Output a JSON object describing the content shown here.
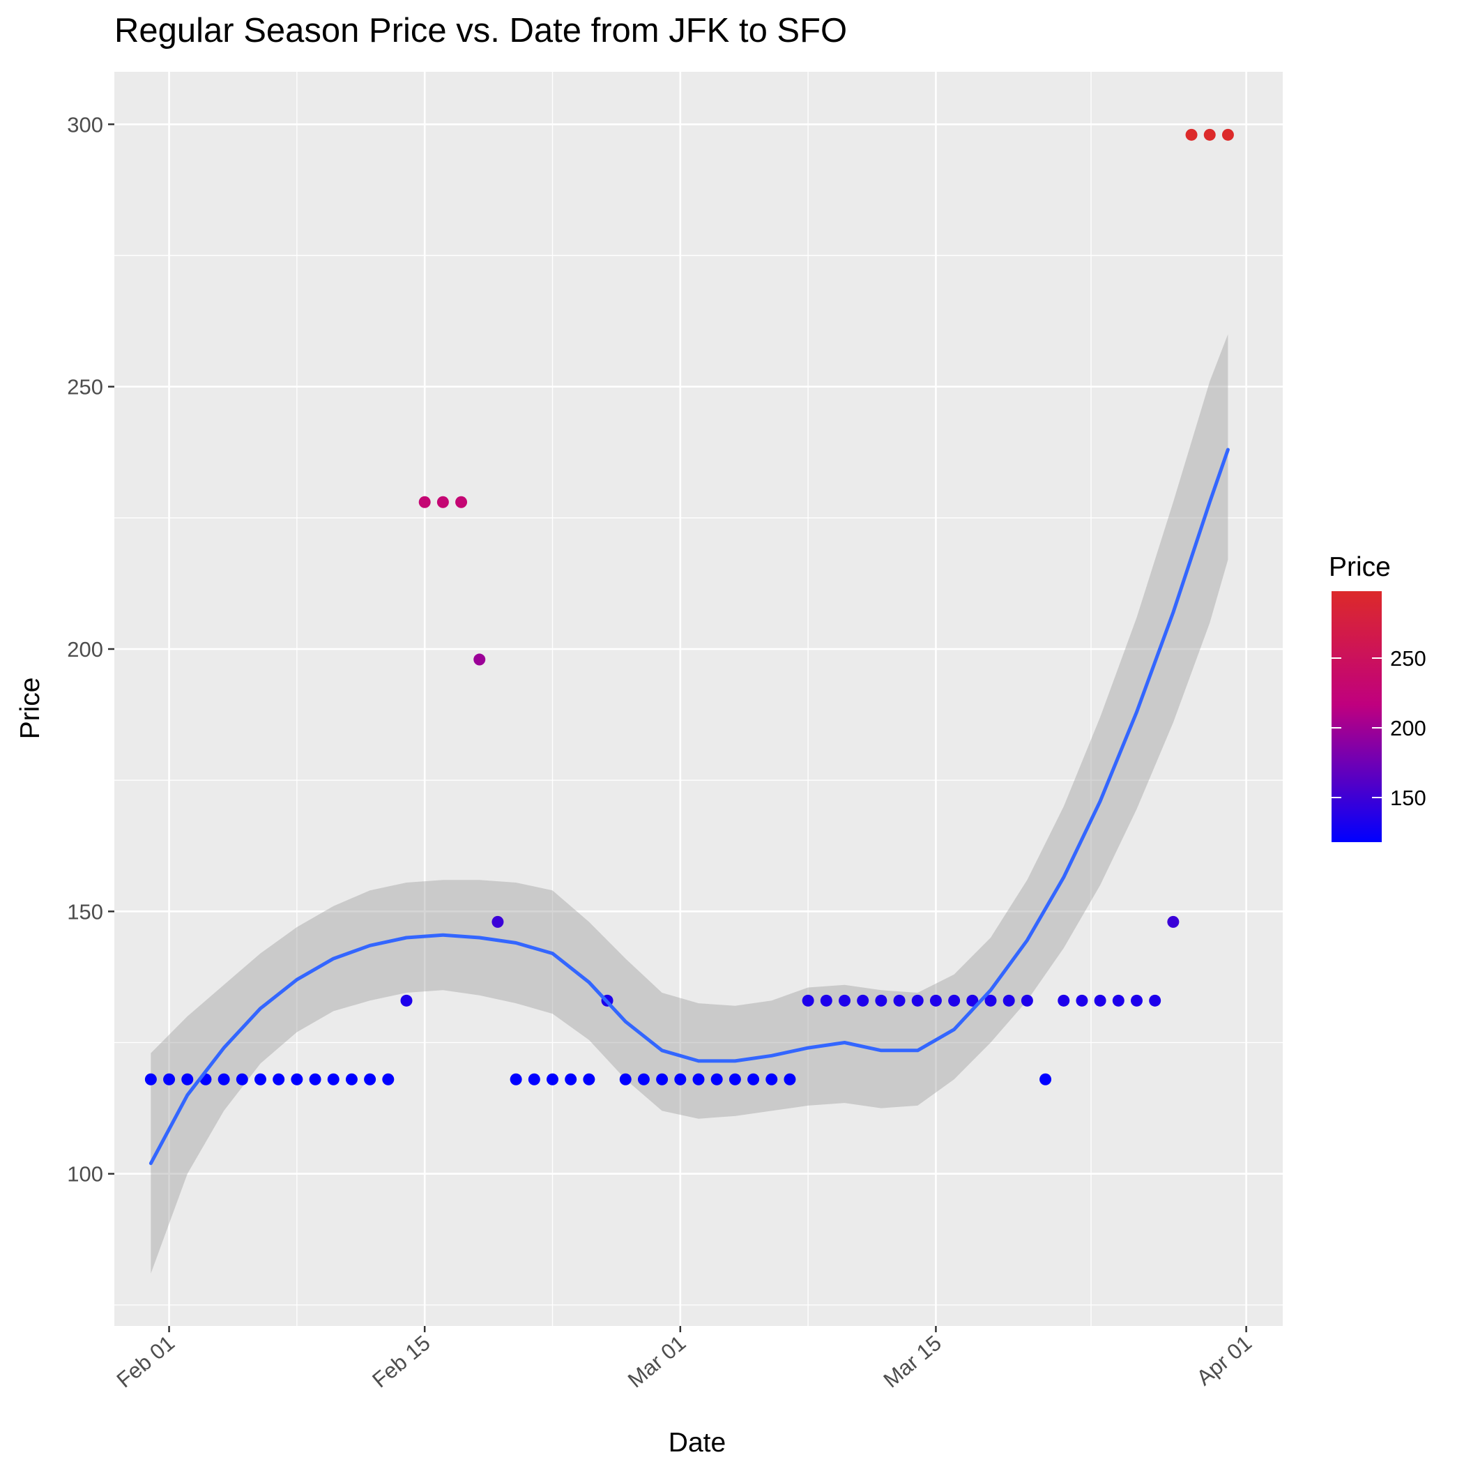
{
  "chart_data": {
    "type": "scatter",
    "title": "Regular Season Price vs. Date from JFK to SFO",
    "xlabel": "Date",
    "ylabel": "Price",
    "x_axis_type": "date",
    "xlim": [
      "2018-01-29",
      "2018-04-03"
    ],
    "ylim": [
      71,
      310
    ],
    "x_ticks": [
      {
        "date": "2018-02-01",
        "label": "Feb 01"
      },
      {
        "date": "2018-02-15",
        "label": "Feb 15"
      },
      {
        "date": "2018-03-01",
        "label": "Mar 01"
      },
      {
        "date": "2018-03-15",
        "label": "Mar 15"
      },
      {
        "date": "2018-04-01",
        "label": "Apr 01"
      }
    ],
    "y_ticks": [
      100,
      150,
      200,
      250,
      300
    ],
    "grid": true,
    "points": [
      {
        "x": "2018-01-31",
        "y": 118
      },
      {
        "x": "2018-02-01",
        "y": 118
      },
      {
        "x": "2018-02-02",
        "y": 118
      },
      {
        "x": "2018-02-03",
        "y": 118
      },
      {
        "x": "2018-02-04",
        "y": 118
      },
      {
        "x": "2018-02-05",
        "y": 118
      },
      {
        "x": "2018-02-06",
        "y": 118
      },
      {
        "x": "2018-02-07",
        "y": 118
      },
      {
        "x": "2018-02-08",
        "y": 118
      },
      {
        "x": "2018-02-09",
        "y": 118
      },
      {
        "x": "2018-02-10",
        "y": 118
      },
      {
        "x": "2018-02-11",
        "y": 118
      },
      {
        "x": "2018-02-12",
        "y": 118
      },
      {
        "x": "2018-02-13",
        "y": 118
      },
      {
        "x": "2018-02-14",
        "y": 133
      },
      {
        "x": "2018-02-15",
        "y": 228
      },
      {
        "x": "2018-02-16",
        "y": 228
      },
      {
        "x": "2018-02-17",
        "y": 228
      },
      {
        "x": "2018-02-18",
        "y": 198
      },
      {
        "x": "2018-02-19",
        "y": 148
      },
      {
        "x": "2018-02-20",
        "y": 118
      },
      {
        "x": "2018-02-21",
        "y": 118
      },
      {
        "x": "2018-02-22",
        "y": 118
      },
      {
        "x": "2018-02-23",
        "y": 118
      },
      {
        "x": "2018-02-24",
        "y": 118
      },
      {
        "x": "2018-02-25",
        "y": 133
      },
      {
        "x": "2018-02-26",
        "y": 118
      },
      {
        "x": "2018-02-27",
        "y": 118
      },
      {
        "x": "2018-02-28",
        "y": 118
      },
      {
        "x": "2018-03-01",
        "y": 118
      },
      {
        "x": "2018-03-02",
        "y": 118
      },
      {
        "x": "2018-03-03",
        "y": 118
      },
      {
        "x": "2018-03-04",
        "y": 118
      },
      {
        "x": "2018-03-05",
        "y": 118
      },
      {
        "x": "2018-03-06",
        "y": 118
      },
      {
        "x": "2018-03-07",
        "y": 118
      },
      {
        "x": "2018-03-08",
        "y": 133
      },
      {
        "x": "2018-03-09",
        "y": 133
      },
      {
        "x": "2018-03-10",
        "y": 133
      },
      {
        "x": "2018-03-11",
        "y": 133
      },
      {
        "x": "2018-03-12",
        "y": 133
      },
      {
        "x": "2018-03-13",
        "y": 133
      },
      {
        "x": "2018-03-14",
        "y": 133
      },
      {
        "x": "2018-03-15",
        "y": 133
      },
      {
        "x": "2018-03-16",
        "y": 133
      },
      {
        "x": "2018-03-17",
        "y": 133
      },
      {
        "x": "2018-03-18",
        "y": 133
      },
      {
        "x": "2018-03-19",
        "y": 133
      },
      {
        "x": "2018-03-20",
        "y": 133
      },
      {
        "x": "2018-03-21",
        "y": 118
      },
      {
        "x": "2018-03-22",
        "y": 133
      },
      {
        "x": "2018-03-23",
        "y": 133
      },
      {
        "x": "2018-03-24",
        "y": 133
      },
      {
        "x": "2018-03-25",
        "y": 133
      },
      {
        "x": "2018-03-26",
        "y": 133
      },
      {
        "x": "2018-03-27",
        "y": 133
      },
      {
        "x": "2018-03-28",
        "y": 148
      },
      {
        "x": "2018-03-29",
        "y": 298
      },
      {
        "x": "2018-03-30",
        "y": 298
      },
      {
        "x": "2018-03-31",
        "y": 298
      }
    ],
    "smooth_fit": {
      "color": "#3366ff",
      "points": [
        {
          "x": "2018-01-31",
          "y": 102,
          "lower": 81,
          "upper": 123
        },
        {
          "x": "2018-02-02",
          "y": 115,
          "lower": 100,
          "upper": 130
        },
        {
          "x": "2018-02-04",
          "y": 124,
          "lower": 112,
          "upper": 136
        },
        {
          "x": "2018-02-06",
          "y": 131.5,
          "lower": 121,
          "upper": 142
        },
        {
          "x": "2018-02-08",
          "y": 137,
          "lower": 127,
          "upper": 147
        },
        {
          "x": "2018-02-10",
          "y": 141,
          "lower": 131,
          "upper": 151
        },
        {
          "x": "2018-02-12",
          "y": 143.5,
          "lower": 133,
          "upper": 154
        },
        {
          "x": "2018-02-14",
          "y": 145,
          "lower": 134.5,
          "upper": 155.5
        },
        {
          "x": "2018-02-16",
          "y": 145.5,
          "lower": 135,
          "upper": 156
        },
        {
          "x": "2018-02-18",
          "y": 145,
          "lower": 134,
          "upper": 156
        },
        {
          "x": "2018-02-20",
          "y": 144,
          "lower": 132.5,
          "upper": 155.5
        },
        {
          "x": "2018-02-22",
          "y": 142,
          "lower": 130.5,
          "upper": 154
        },
        {
          "x": "2018-02-24",
          "y": 136.5,
          "lower": 125.5,
          "upper": 148
        },
        {
          "x": "2018-02-26",
          "y": 129,
          "lower": 118,
          "upper": 141
        },
        {
          "x": "2018-02-28",
          "y": 123.5,
          "lower": 112,
          "upper": 134.5
        },
        {
          "x": "2018-03-02",
          "y": 121.5,
          "lower": 110.5,
          "upper": 132.5
        },
        {
          "x": "2018-03-04",
          "y": 121.5,
          "lower": 111,
          "upper": 132
        },
        {
          "x": "2018-03-06",
          "y": 122.5,
          "lower": 112,
          "upper": 133
        },
        {
          "x": "2018-03-08",
          "y": 124,
          "lower": 113,
          "upper": 135.5
        },
        {
          "x": "2018-03-10",
          "y": 125,
          "lower": 113.5,
          "upper": 136
        },
        {
          "x": "2018-03-12",
          "y": 123.5,
          "lower": 112.5,
          "upper": 135
        },
        {
          "x": "2018-03-14",
          "y": 123.5,
          "lower": 113,
          "upper": 134.5
        },
        {
          "x": "2018-03-16",
          "y": 127.5,
          "lower": 118,
          "upper": 138
        },
        {
          "x": "2018-03-18",
          "y": 135,
          "lower": 125,
          "upper": 145
        },
        {
          "x": "2018-03-20",
          "y": 144.5,
          "lower": 133,
          "upper": 156
        },
        {
          "x": "2018-03-22",
          "y": 156.5,
          "lower": 143,
          "upper": 170
        },
        {
          "x": "2018-03-24",
          "y": 171,
          "lower": 155,
          "upper": 187
        },
        {
          "x": "2018-03-26",
          "y": 188,
          "lower": 169.5,
          "upper": 206
        },
        {
          "x": "2018-03-28",
          "y": 207,
          "lower": 186,
          "upper": 228
        },
        {
          "x": "2018-03-30",
          "y": 228,
          "lower": 205,
          "upper": 251
        },
        {
          "x": "2018-03-31",
          "y": 238,
          "lower": 217,
          "upper": 260
        }
      ]
    },
    "legend": {
      "title": "Price",
      "placement": "right",
      "type": "colorbar",
      "range": [
        118,
        298
      ],
      "low_color": "#0000ff",
      "mid_color": "#c0007e",
      "high_color": "#dc2a2a",
      "ticks": [
        150,
        200,
        250
      ]
    }
  }
}
